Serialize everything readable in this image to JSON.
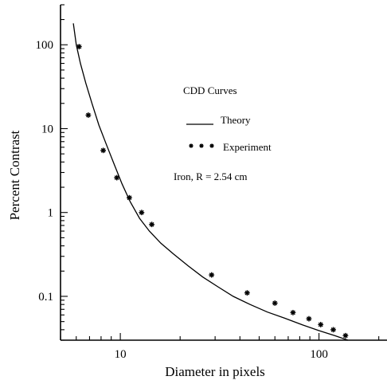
{
  "chart_data": {
    "type": "line",
    "title": "",
    "xlabel": "Diameter  in pixels",
    "ylabel": "Percent  Contrast",
    "x_scale": "log",
    "y_scale": "log",
    "xlim": [
      5,
      220
    ],
    "ylim": [
      0.03,
      300
    ],
    "x_ticks": [
      {
        "value": 10,
        "label": "10"
      },
      {
        "value": 100,
        "label": "100"
      }
    ],
    "y_ticks": [
      {
        "value": 0.1,
        "label": "0.1"
      },
      {
        "value": 1,
        "label": "1"
      },
      {
        "value": 10,
        "label": "10"
      },
      {
        "value": 100,
        "label": "100"
      }
    ],
    "grid": false,
    "legend": {
      "title": "CDD Curves",
      "placement": "upper-right",
      "entries": [
        {
          "marker": "line",
          "label": "Theory"
        },
        {
          "marker": "stars",
          "label": "Experiment"
        }
      ],
      "note": "Iron, R = 2.54 cm"
    },
    "series": [
      {
        "name": "Theory",
        "style": "line",
        "x": [
          5.8,
          6.0,
          6.3,
          6.7,
          7.2,
          7.8,
          8.5,
          9.3,
          10.2,
          11.2,
          12.5,
          14,
          16,
          18.5,
          22,
          26,
          31,
          37,
          45,
          55,
          67,
          82,
          100,
          120,
          140
        ],
        "y": [
          180,
          100,
          60,
          35,
          20,
          11,
          6.5,
          3.8,
          2.2,
          1.35,
          0.85,
          0.6,
          0.43,
          0.32,
          0.23,
          0.17,
          0.13,
          0.1,
          0.08,
          0.065,
          0.055,
          0.046,
          0.039,
          0.034,
          0.03
        ]
      },
      {
        "name": "Experiment",
        "style": "markers",
        "x": [
          6.2,
          6.9,
          8.2,
          9.6,
          11.1,
          12.8,
          14.4,
          28.8,
          43.5,
          60,
          74,
          89,
          102,
          118,
          136
        ],
        "y": [
          95,
          14.5,
          5.5,
          2.6,
          1.5,
          1.0,
          0.72,
          0.18,
          0.11,
          0.083,
          0.064,
          0.054,
          0.046,
          0.04,
          0.034
        ]
      }
    ]
  }
}
